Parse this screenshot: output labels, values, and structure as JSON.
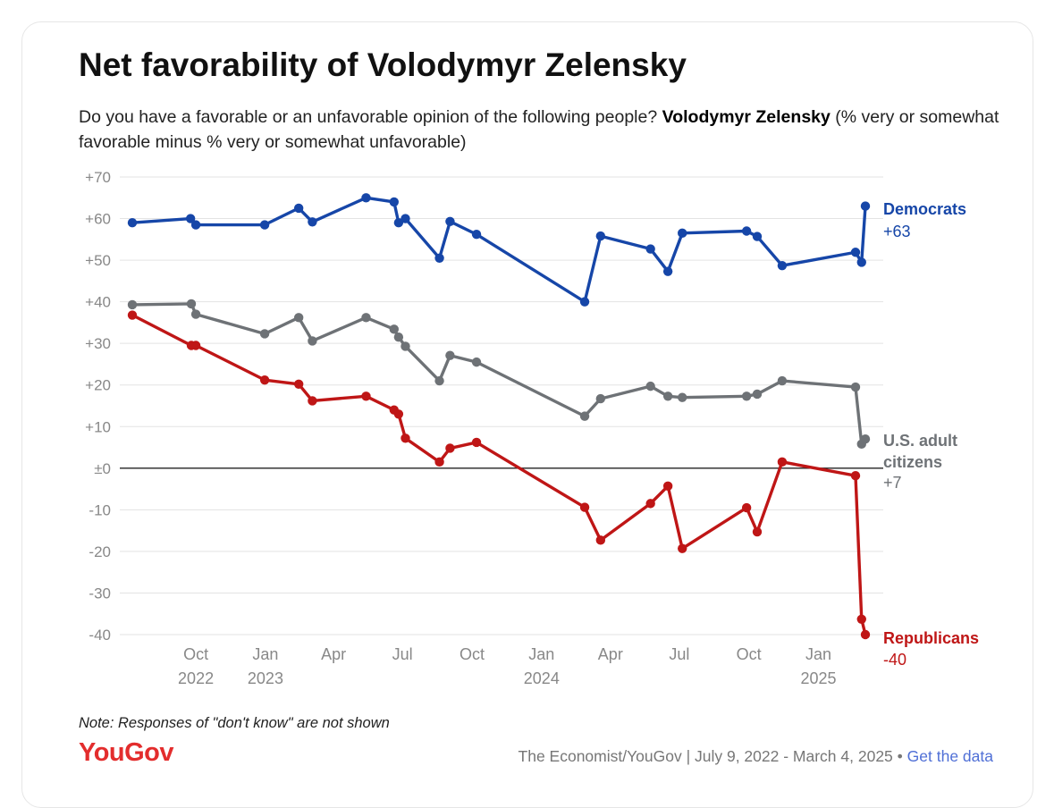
{
  "title": "Net favorability of Volodymyr Zelensky",
  "subtitle": {
    "question": "Do you have a favorable or an unfavorable opinion of the following people?",
    "subject": "Volodymyr Zelensky",
    "measure": "(% very or somewhat favorable minus % very or somewhat unfavorable)"
  },
  "note": "Note: Responses of \"don't know\" are not shown",
  "logo": "YouGov",
  "source": "The Economist/YouGov | July 9, 2022 - March 4, 2025",
  "source_separator": "•",
  "source_link": "Get the data",
  "chart_data": {
    "type": "line",
    "title": "Net favorability of Volodymyr Zelensky",
    "ylim": [
      -40,
      70
    ],
    "y_ticks": [
      70,
      60,
      50,
      40,
      30,
      20,
      10,
      0,
      -10,
      -20,
      -30,
      -40
    ],
    "y_tick_labels": [
      "+70",
      "+60",
      "+50",
      "+40",
      "+30",
      "+20",
      "+10",
      "±0",
      "-10",
      "-20",
      "-30",
      "-40"
    ],
    "x_domain": [
      "2022-07-09",
      "2025-03-04"
    ],
    "x_ticks": [
      {
        "date": "2022-10-01",
        "label": "Oct",
        "year": "2022"
      },
      {
        "date": "2023-01-01",
        "label": "Jan",
        "year": "2023"
      },
      {
        "date": "2023-04-01",
        "label": "Apr",
        "year": ""
      },
      {
        "date": "2023-07-01",
        "label": "Jul",
        "year": ""
      },
      {
        "date": "2023-10-01",
        "label": "Oct",
        "year": ""
      },
      {
        "date": "2024-01-01",
        "label": "Jan",
        "year": "2024"
      },
      {
        "date": "2024-04-01",
        "label": "Apr",
        "year": ""
      },
      {
        "date": "2024-07-01",
        "label": "Jul",
        "year": ""
      },
      {
        "date": "2024-10-01",
        "label": "Oct",
        "year": ""
      },
      {
        "date": "2025-01-01",
        "label": "Jan",
        "year": "2025"
      }
    ],
    "series": [
      {
        "name": "Democrats",
        "label_lines": [
          "Democrats"
        ],
        "end_value_label": "+63",
        "color": "#1646a8",
        "points": [
          [
            "2022-07-09",
            59
          ],
          [
            "2022-09-24",
            60
          ],
          [
            "2022-10-01",
            58.5
          ],
          [
            "2022-12-31",
            58.5
          ],
          [
            "2023-02-14",
            62.5
          ],
          [
            "2023-03-04",
            59.2
          ],
          [
            "2023-05-14",
            65
          ],
          [
            "2023-06-20",
            64
          ],
          [
            "2023-06-26",
            59
          ],
          [
            "2023-07-05",
            60
          ],
          [
            "2023-08-19",
            50.5
          ],
          [
            "2023-09-02",
            59.3
          ],
          [
            "2023-10-07",
            56.2
          ],
          [
            "2024-02-27",
            40
          ],
          [
            "2024-03-19",
            55.8
          ],
          [
            "2024-05-24",
            52.7
          ],
          [
            "2024-06-16",
            47.3
          ],
          [
            "2024-07-05",
            56.5
          ],
          [
            "2024-09-28",
            57
          ],
          [
            "2024-10-12",
            55.7
          ],
          [
            "2024-11-14",
            48.7
          ],
          [
            "2025-02-19",
            51.9
          ],
          [
            "2025-02-27",
            49.5
          ],
          [
            "2025-03-04",
            63
          ]
        ]
      },
      {
        "name": "U.S. adult citizens",
        "label_lines": [
          "U.S. adult",
          "citizens"
        ],
        "end_value_label": "+7",
        "color": "#6e7276",
        "points": [
          [
            "2022-07-09",
            39.3
          ],
          [
            "2022-09-25",
            39.5
          ],
          [
            "2022-10-01",
            37
          ],
          [
            "2022-12-31",
            32.3
          ],
          [
            "2023-02-14",
            36.2
          ],
          [
            "2023-03-04",
            30.6
          ],
          [
            "2023-05-14",
            36.2
          ],
          [
            "2023-06-20",
            33.4
          ],
          [
            "2023-06-26",
            31.5
          ],
          [
            "2023-07-05",
            29.3
          ],
          [
            "2023-08-19",
            21
          ],
          [
            "2023-09-02",
            27.1
          ],
          [
            "2023-10-07",
            25.5
          ],
          [
            "2024-02-27",
            12.5
          ],
          [
            "2024-03-19",
            16.7
          ],
          [
            "2024-05-24",
            19.7
          ],
          [
            "2024-06-16",
            17.3
          ],
          [
            "2024-07-05",
            17
          ],
          [
            "2024-09-28",
            17.3
          ],
          [
            "2024-10-12",
            17.8
          ],
          [
            "2024-11-14",
            21
          ],
          [
            "2025-02-19",
            19.5
          ],
          [
            "2025-02-27",
            5.8
          ],
          [
            "2025-03-04",
            7
          ]
        ]
      },
      {
        "name": "Republicans",
        "label_lines": [
          "Republicans"
        ],
        "end_value_label": "-40",
        "color": "#bf1616",
        "points": [
          [
            "2022-07-09",
            36.8
          ],
          [
            "2022-09-25",
            29.5
          ],
          [
            "2022-10-01",
            29.5
          ],
          [
            "2022-12-31",
            21.2
          ],
          [
            "2023-02-14",
            20.2
          ],
          [
            "2023-03-04",
            16.2
          ],
          [
            "2023-05-14",
            17.3
          ],
          [
            "2023-06-20",
            14
          ],
          [
            "2023-06-26",
            13
          ],
          [
            "2023-07-05",
            7.2
          ],
          [
            "2023-08-19",
            1.5
          ],
          [
            "2023-09-02",
            4.8
          ],
          [
            "2023-10-07",
            6.2
          ],
          [
            "2024-02-27",
            -9.4
          ],
          [
            "2024-03-19",
            -17.3
          ],
          [
            "2024-05-24",
            -8.5
          ],
          [
            "2024-06-16",
            -4.3
          ],
          [
            "2024-07-05",
            -19.3
          ],
          [
            "2024-09-28",
            -9.5
          ],
          [
            "2024-10-12",
            -15.3
          ],
          [
            "2024-11-14",
            1.5
          ],
          [
            "2025-02-19",
            -1.8
          ],
          [
            "2025-02-27",
            -36.3
          ],
          [
            "2025-03-04",
            -40
          ]
        ]
      }
    ]
  }
}
